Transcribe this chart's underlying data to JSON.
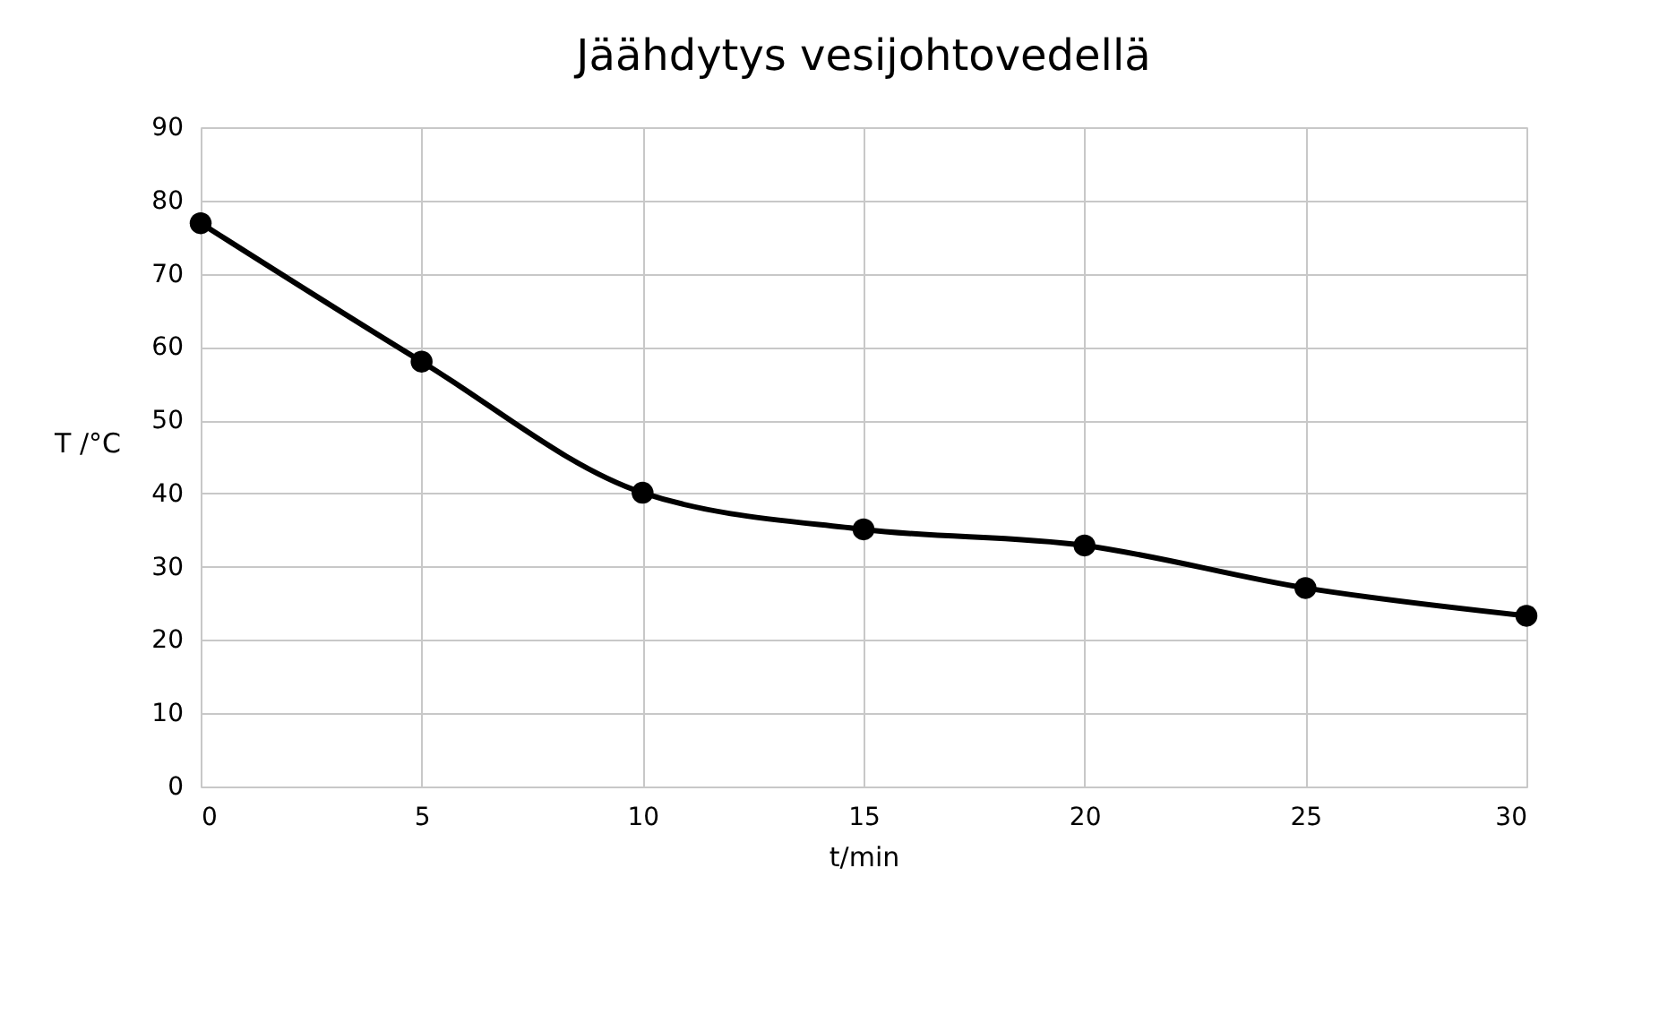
{
  "chart_data": {
    "type": "line",
    "title": "Jäähdytys vesijohtovedellä",
    "xlabel": "t/min",
    "ylabel": "T /°C",
    "x": [
      0,
      5,
      10,
      15,
      20,
      25,
      30
    ],
    "series": [
      {
        "color": "#000000",
        "values": [
          76.9,
          58.0,
          40.1,
          35.1,
          32.9,
          27.1,
          23.3
        ]
      }
    ],
    "xlim": [
      0,
      30
    ],
    "xticks": [
      0,
      5,
      10,
      15,
      20,
      25,
      30
    ],
    "ylim": [
      0,
      90
    ],
    "yticks": [
      0,
      10,
      20,
      30,
      40,
      50,
      60,
      70,
      80,
      90
    ],
    "grid": true,
    "legend": false,
    "marker": "circle",
    "line_style": "solid"
  }
}
